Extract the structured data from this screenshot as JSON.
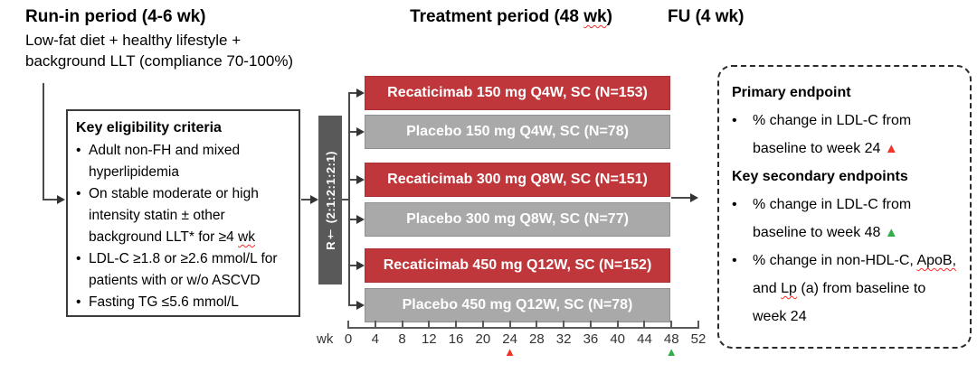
{
  "headers": {
    "run_in_title": "Run-in period (4-6 wk)",
    "run_in_line1": "Low-fat diet + healthy lifestyle +",
    "run_in_line2": "background LLT (compliance 70-100%)",
    "treatment_title_pre": "Treatment period (48",
    "treatment_title_wavy": "wk",
    "treatment_title_post": ")",
    "fu_title": "FU (4 wk)"
  },
  "eligibility": {
    "bullet": "•",
    "title": "Key eligibility criteria",
    "item1": "Adult non-FH and mixed hyperlipidemia",
    "item2_pre": "On stable moderate or high intensity statin ± other background LLT* for ≥4",
    "item2_wavy": "wk",
    "item3": "LDL-C ≥1.8 or ≥2.6 mmol/L for patients with or w/o ASCVD",
    "item4": "Fasting TG ≤5.6 mmol/L"
  },
  "randomization": {
    "label": "R† (2:1:2:1:2:1)"
  },
  "arms": [
    {
      "label": "Recaticimab 150 mg Q4W, SC (N=153)",
      "type": "active"
    },
    {
      "label": "Placebo 150 mg Q4W, SC (N=78)",
      "type": "placebo"
    },
    {
      "label": "Recaticimab 300 mg Q8W, SC (N=151)",
      "type": "active"
    },
    {
      "label": "Placebo 300 mg Q8W, SC (N=77)",
      "type": "placebo"
    },
    {
      "label": "Recaticimab 450 mg Q12W, SC (N=152)",
      "type": "active"
    },
    {
      "label": "Placebo 450 mg Q12W, SC (N=78)",
      "type": "placebo"
    }
  ],
  "axis": {
    "unit_label": "wk",
    "tick_weeks": [
      0,
      4,
      8,
      12,
      16,
      20,
      24,
      28,
      32,
      36,
      40,
      44,
      48,
      52
    ],
    "max_week": 52,
    "markers": [
      {
        "week": 24,
        "symbol": "▲",
        "color": "#f03428",
        "name": "week-24-primary-marker"
      },
      {
        "week": 48,
        "symbol": "▲",
        "color": "#2fae4a",
        "name": "week-48-secondary-marker"
      }
    ]
  },
  "endpoints": {
    "bullet": "•",
    "primary_title": "Primary endpoint",
    "primary_item": "% change in LDL-C from baseline to week 24",
    "primary_marker": "▲",
    "secondary_title": "Key secondary endpoints",
    "secondary_item1": "% change in LDL-C from baseline to week 48",
    "secondary_marker": "▲",
    "secondary_item2_seg1": "% change in non-HDL-C,",
    "secondary_item2_wavy1": "ApoB,",
    "secondary_item2_seg2": "and",
    "secondary_item2_wavy2": "Lp",
    "secondary_item2_seg3": "(a) from baseline to week 24"
  },
  "colors": {
    "active_arm": "#bf363b",
    "placebo_arm": "#a9a9a9",
    "randomizer_bar": "#595959",
    "marker_red": "#f03428",
    "marker_green": "#2fae4a"
  }
}
